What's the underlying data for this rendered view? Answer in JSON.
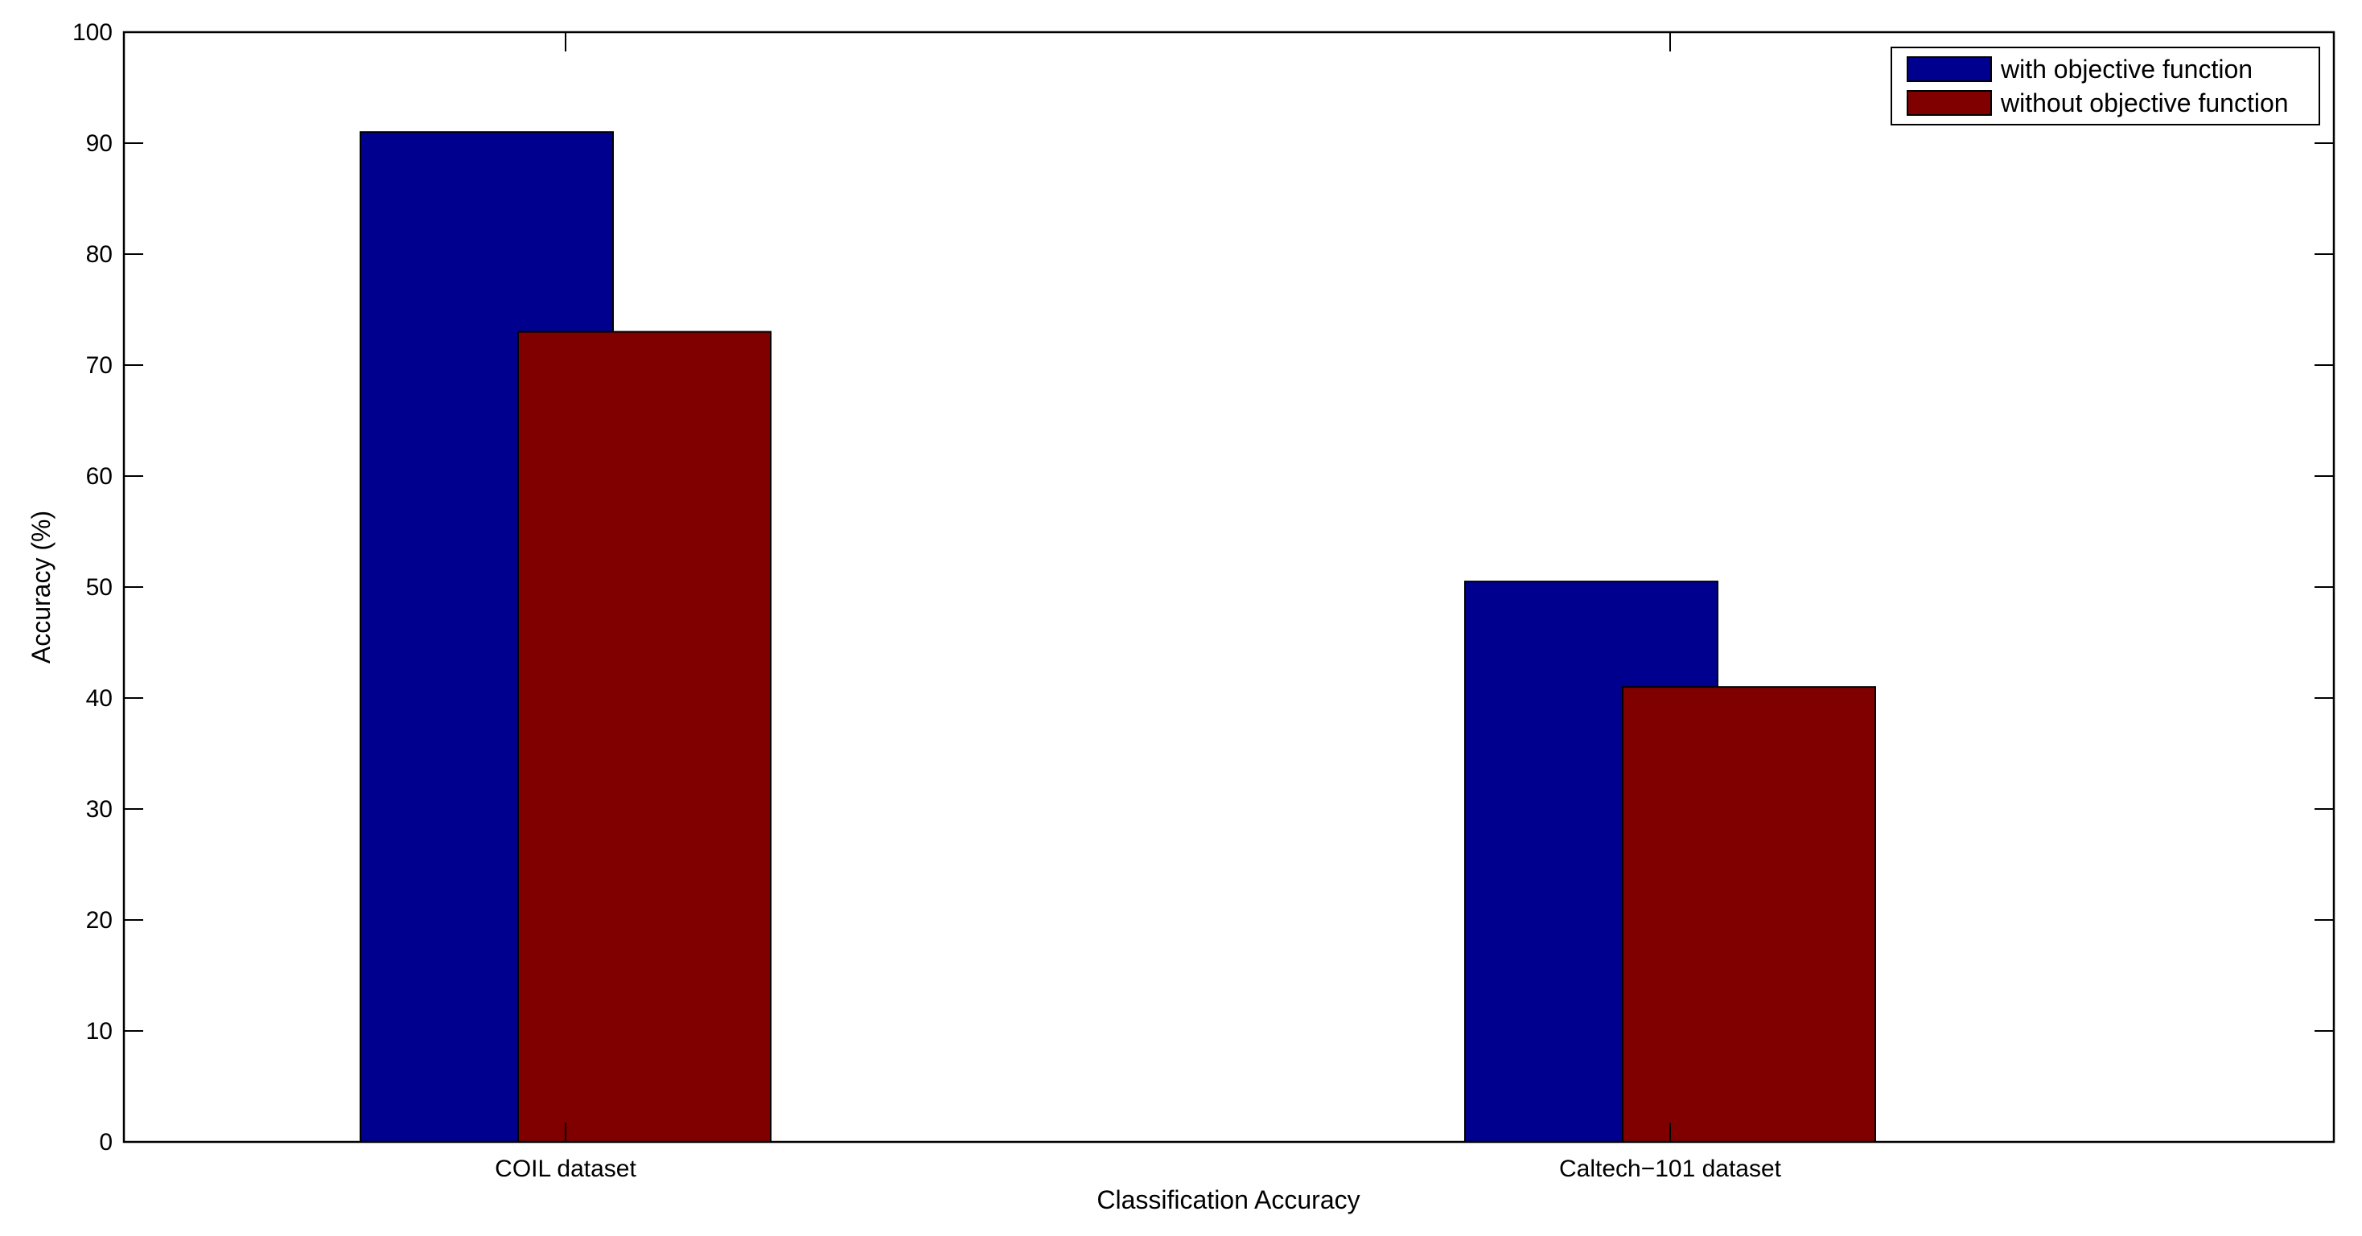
{
  "chart_data": {
    "type": "bar",
    "categories": [
      "COIL dataset",
      "Caltech−101 dataset"
    ],
    "series": [
      {
        "name": "with objective function",
        "color": "#00008f",
        "values": [
          91,
          50.5
        ]
      },
      {
        "name": "without objective function",
        "color": "#800000",
        "values": [
          73,
          41
        ]
      }
    ],
    "xlabel": "Classification Accuracy",
    "ylabel": "Accuracy (%)",
    "ylim": [
      0,
      100
    ],
    "yticks": [
      0,
      10,
      20,
      30,
      40,
      50,
      60,
      70,
      80,
      90,
      100
    ],
    "grid": false,
    "legend_position": "top-right"
  }
}
